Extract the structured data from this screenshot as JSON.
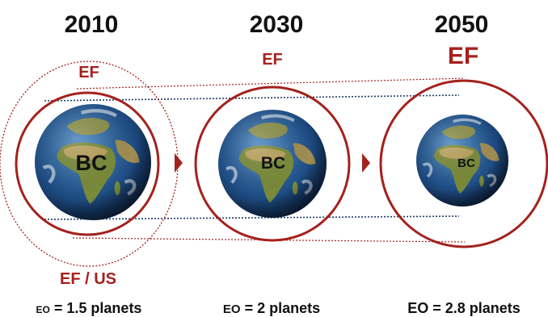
{
  "colors": {
    "accent": "#a3221e",
    "dotted_blue": "#1f3a6b",
    "ocean": "#1f4e86",
    "land": "#7a8b3a"
  },
  "columns": [
    {
      "year": "2010",
      "ef_label": "EF",
      "bc_label": "BC",
      "eo_prefix": "EO",
      "eo_value": " = 1.5 planets"
    },
    {
      "year": "2030",
      "ef_label": "EF",
      "bc_label": "BC",
      "eo_prefix": "EO",
      "eo_value": " = 2 planets"
    },
    {
      "year": "2050",
      "ef_label": "EF",
      "bc_label": "BC",
      "eo_prefix": "EO",
      "eo_value": " = 2.8 planets"
    }
  ],
  "ef_us_label": "EF / US",
  "icons": [
    "earth-globe-icon",
    "triangle-arrow-right-icon"
  ]
}
